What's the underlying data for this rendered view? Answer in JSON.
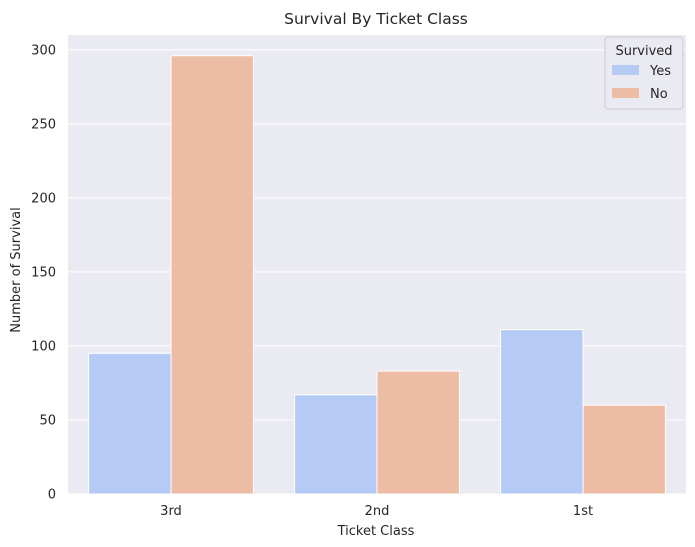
{
  "chart_data": {
    "type": "bar",
    "title": "Survival By Ticket Class",
    "xlabel": "Ticket Class",
    "ylabel": "Number of Survival",
    "categories": [
      "3rd",
      "2nd",
      "1st"
    ],
    "series": [
      {
        "name": "Yes",
        "values": [
          95,
          67,
          111
        ],
        "color": "#b5cbf5"
      },
      {
        "name": "No",
        "values": [
          296,
          83,
          60
        ],
        "color": "#ecbca5"
      }
    ],
    "ylim": [
      0,
      310
    ],
    "yticks": [
      0,
      50,
      100,
      150,
      200,
      250,
      300
    ],
    "grid": true,
    "legend": {
      "title": "Survived",
      "placement": "top-right"
    },
    "colors": {
      "background": "#eaeaf2",
      "grid": "#ffffff"
    }
  }
}
